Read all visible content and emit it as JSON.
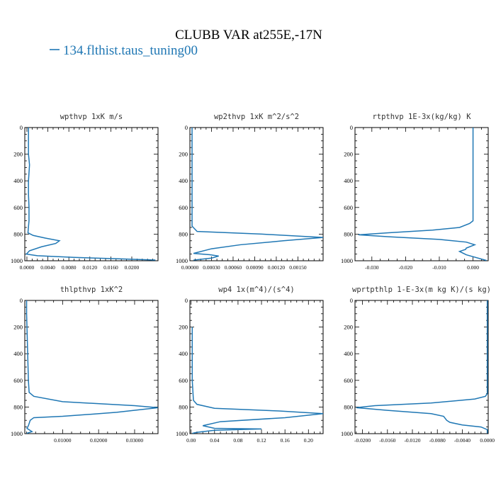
{
  "chart_data": {
    "type": "line",
    "title": "CLUBB VAR at255E,-17N",
    "legend": [
      {
        "label": "134.flthist.taus_tuning00",
        "color": "#1f77b4"
      }
    ],
    "panels": [
      {
        "title": "wpthvp   1xK m/s",
        "xlim": [
          -0.0004,
          0.025
        ],
        "ylim": [
          1000,
          0
        ],
        "xticks": [
          0,
          0.004,
          0.008,
          0.012,
          0.016,
          0.02
        ],
        "xtick_labels": [
          "0.0000",
          "0.0040",
          "0.0080",
          "0.0120",
          "0.0160",
          "0.0200"
        ],
        "yticks": [
          0,
          200,
          400,
          600,
          800,
          1000
        ],
        "ytick_labels": [
          "0",
          "200",
          "400",
          "600",
          "800",
          "1000"
        ],
        "points": [
          [
            0.0003,
            0
          ],
          [
            0.0003,
            100
          ],
          [
            0.0003,
            200
          ],
          [
            0.0005,
            280
          ],
          [
            0.0003,
            400
          ],
          [
            0.0003,
            500
          ],
          [
            0.0004,
            600
          ],
          [
            0.0004,
            700
          ],
          [
            0.0002,
            790
          ],
          [
            0.0012,
            810
          ],
          [
            0.0035,
            830
          ],
          [
            0.0062,
            850
          ],
          [
            0.0055,
            870
          ],
          [
            0.0028,
            895
          ],
          [
            0.0005,
            925
          ],
          [
            -0.0001,
            950
          ],
          [
            0.002,
            962
          ],
          [
            0.009,
            975
          ],
          [
            0.017,
            985
          ],
          [
            0.0245,
            995
          ]
        ]
      },
      {
        "title": "wp2thvp   1xK m^2/s^2",
        "xlim": [
          0,
          0.00185
        ],
        "ylim": [
          1000,
          0
        ],
        "xticks": [
          0,
          0.0003,
          0.0006,
          0.0009,
          0.0012,
          0.0015
        ],
        "xtick_labels": [
          "0.00000",
          "0.00030",
          "0.00060",
          "0.00090",
          "0.00120",
          "0.00150"
        ],
        "yticks": [
          0,
          200,
          400,
          600,
          800,
          1000
        ],
        "ytick_labels": [
          "0",
          "200",
          "400",
          "600",
          "800",
          "1000"
        ],
        "points": [
          [
            3e-05,
            0
          ],
          [
            3e-05,
            200
          ],
          [
            3e-05,
            400
          ],
          [
            3e-05,
            600
          ],
          [
            3e-05,
            740
          ],
          [
            0.0001,
            780
          ],
          [
            0.001,
            800
          ],
          [
            0.00185,
            825
          ],
          [
            0.0013,
            850
          ],
          [
            0.0007,
            880
          ],
          [
            0.0003,
            910
          ],
          [
            5e-05,
            945
          ],
          [
            0.00028,
            955
          ],
          [
            0.0004,
            965
          ],
          [
            0.0003,
            980
          ],
          [
            5e-05,
            995
          ]
        ]
      },
      {
        "title": "rtpthvp   1E-3x(kg/kg) K",
        "xlim": [
          -0.035,
          0.0045
        ],
        "ylim": [
          1000,
          0
        ],
        "xticks": [
          -0.03,
          -0.02,
          -0.01,
          0
        ],
        "xtick_labels": [
          "-0.030",
          "-0.020",
          "-0.010",
          "0.000"
        ],
        "yticks": [
          0,
          200,
          400,
          600,
          800,
          1000
        ],
        "ytick_labels": [
          "0",
          "200",
          "400",
          "600",
          "800",
          "1000"
        ],
        "points": [
          [
            0,
            0
          ],
          [
            0,
            200
          ],
          [
            0,
            400
          ],
          [
            0,
            600
          ],
          [
            0,
            700
          ],
          [
            -0.001,
            720
          ],
          [
            -0.004,
            750
          ],
          [
            -0.012,
            770
          ],
          [
            -0.025,
            790
          ],
          [
            -0.034,
            805
          ],
          [
            -0.025,
            820
          ],
          [
            -0.01,
            840
          ],
          [
            -0.002,
            860
          ],
          [
            0.0005,
            880
          ],
          [
            -0.002,
            905
          ],
          [
            -0.0022,
            915
          ],
          [
            -0.004,
            930
          ],
          [
            -0.002,
            955
          ],
          [
            0.004,
            998
          ]
        ]
      },
      {
        "title": "thlpthvp   1xK^2",
        "xlim": [
          -0.0005,
          0.0365
        ],
        "ylim": [
          1000,
          0
        ],
        "xticks": [
          0.01,
          0.02,
          0.03
        ],
        "xtick_labels": [
          "0.01000",
          "0.02000",
          "0.03000"
        ],
        "yticks": [
          0,
          200,
          400,
          600,
          800,
          1000
        ],
        "ytick_labels": [
          "0",
          "200",
          "400",
          "600",
          "800",
          "1000"
        ],
        "points": [
          [
            0,
            0
          ],
          [
            0,
            100
          ],
          [
            0.0001,
            200
          ],
          [
            0.0003,
            400
          ],
          [
            0.0005,
            600
          ],
          [
            0.0007,
            690
          ],
          [
            0.002,
            720
          ],
          [
            0.01,
            760
          ],
          [
            0.03,
            790
          ],
          [
            0.0365,
            805
          ],
          [
            0.025,
            840
          ],
          [
            0.01,
            870
          ],
          [
            0.002,
            880
          ],
          [
            0.001,
            900
          ],
          [
            0.0005,
            940
          ],
          [
            0.0001,
            960
          ],
          [
            0.0015,
            985
          ],
          [
            0,
            998
          ]
        ]
      },
      {
        "title": "wp4   1x(m^4)/(s^4)",
        "xlim": [
          -0.002,
          0.225
        ],
        "ylim": [
          1000,
          0
        ],
        "xticks": [
          0,
          0.04,
          0.08,
          0.12,
          0.16,
          0.2
        ],
        "xtick_labels": [
          "0.00",
          "0.04",
          "0.08",
          "0.12",
          "0.16",
          "0.20"
        ],
        "yticks": [
          0,
          200,
          400,
          600,
          800,
          1000
        ],
        "ytick_labels": [
          "0",
          "200",
          "400",
          "600",
          "800",
          "1000"
        ],
        "points": [
          [
            0.002,
            200
          ],
          [
            0.002,
            300
          ],
          [
            0.002,
            400
          ],
          [
            0.002,
            600
          ],
          [
            0.004,
            750
          ],
          [
            0.01,
            780
          ],
          [
            0.04,
            810
          ],
          [
            0.15,
            830
          ],
          [
            0.225,
            850
          ],
          [
            0.16,
            880
          ],
          [
            0.05,
            910
          ],
          [
            0.02,
            940
          ],
          [
            0.04,
            960
          ],
          [
            0.12,
            965
          ],
          [
            0.04,
            975
          ],
          [
            0.01,
            990
          ],
          [
            0.002,
            998
          ]
        ]
      },
      {
        "title": "wprtpthlp   1-E-3x(m kg K)/(s kg)",
        "xlim": [
          -0.0212,
          0.00015
        ],
        "ylim": [
          1000,
          0
        ],
        "xticks": [
          -0.02,
          -0.016,
          -0.012,
          -0.008,
          -0.004,
          0
        ],
        "xtick_labels": [
          "-0.0200",
          "-0.0160",
          "-0.0120",
          "-0.0080",
          "-0.0040",
          "0.0000"
        ],
        "yticks": [
          0,
          200,
          400,
          600,
          800,
          1000
        ],
        "ytick_labels": [
          "0",
          "200",
          "400",
          "600",
          "800",
          "1000"
        ],
        "points": [
          [
            0,
            0
          ],
          [
            0,
            200
          ],
          [
            0,
            400
          ],
          [
            0,
            600
          ],
          [
            0,
            700
          ],
          [
            -0.0003,
            720
          ],
          [
            -0.002,
            740
          ],
          [
            -0.009,
            770
          ],
          [
            -0.018,
            790
          ],
          [
            -0.021,
            805
          ],
          [
            -0.016,
            825
          ],
          [
            -0.009,
            850
          ],
          [
            -0.007,
            870
          ],
          [
            -0.0065,
            900
          ],
          [
            -0.006,
            915
          ],
          [
            -0.004,
            935
          ],
          [
            -0.001,
            950
          ],
          [
            0,
            970
          ],
          [
            0,
            998
          ]
        ]
      }
    ]
  }
}
